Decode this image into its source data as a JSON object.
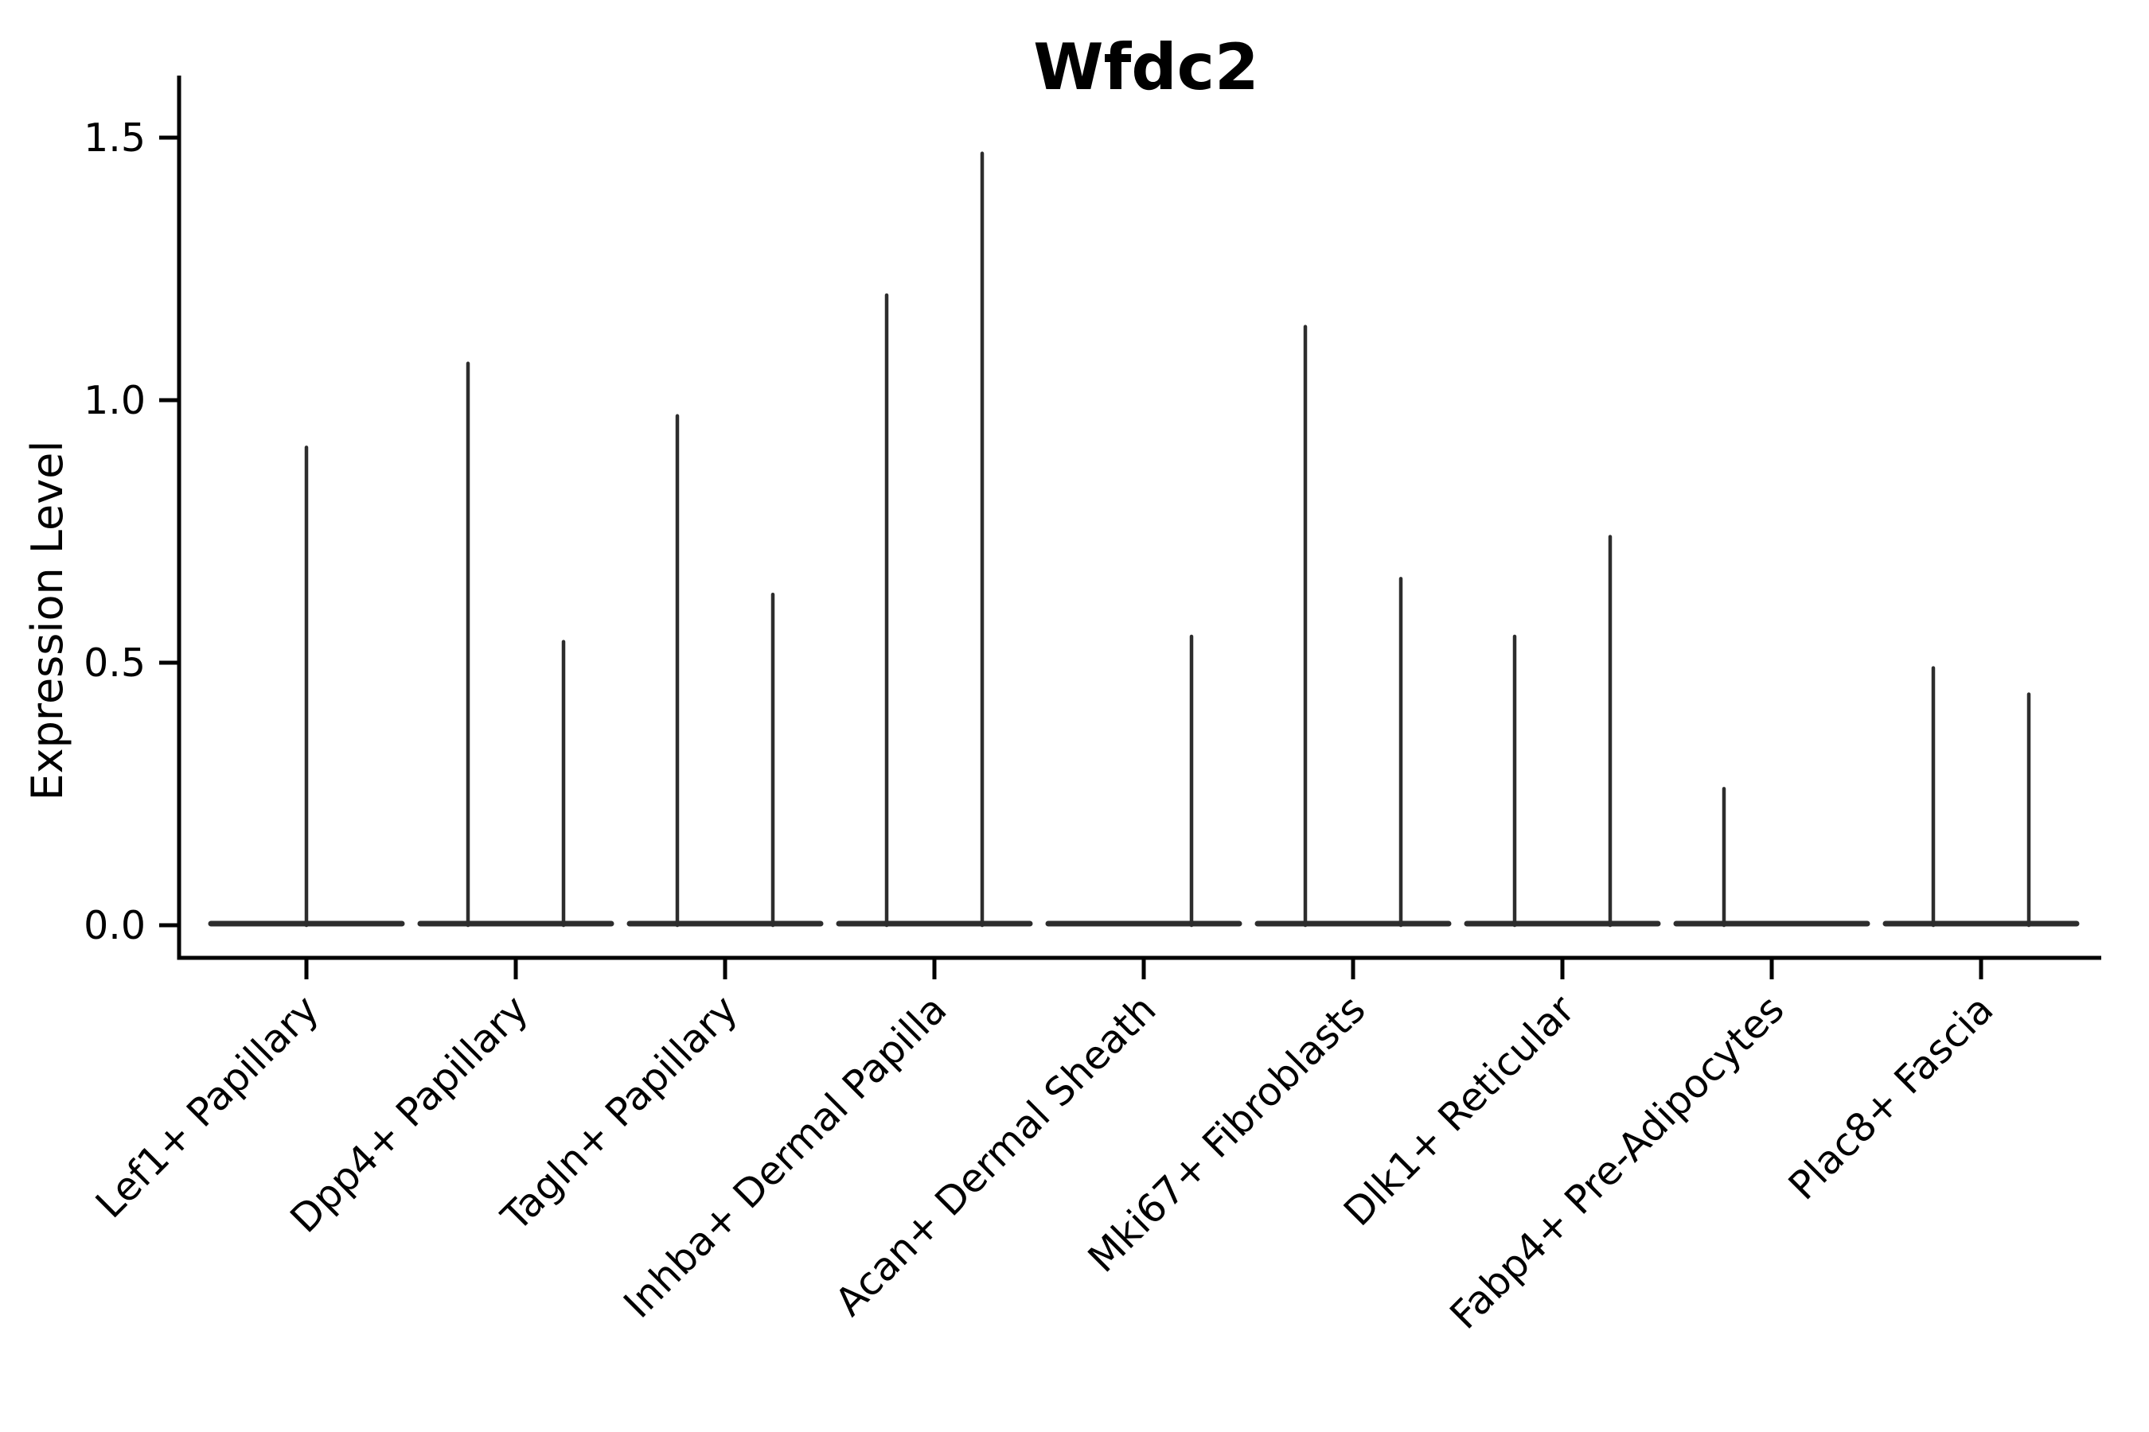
{
  "title": "Wfdc2",
  "ylabel": "Expression Level",
  "colors": {
    "violin_stroke": "#2d2d2d",
    "axis": "#000000",
    "text": "#000000",
    "background": "#ffffff"
  },
  "chart_data": {
    "type": "violin",
    "title": "Wfdc2",
    "xlabel": "",
    "ylabel": "Expression Level",
    "ylim": [
      0.0,
      1.5
    ],
    "yticks": [
      0.0,
      0.5,
      1.0,
      1.5
    ],
    "ytick_labels": [
      "0.0",
      "0.5",
      "1.0",
      "1.5"
    ],
    "grid": false,
    "legend_position": "none",
    "x_tick_rotation_deg": 45,
    "categories": [
      "Lef1+ Papillary",
      "Dpp4+ Papillary",
      "Tagln+ Papillary",
      "Inhba+ Dermal Papilla",
      "Acan+ Dermal Sheath",
      "Mki67+ Fibroblasts",
      "Dlk1+ Reticular",
      "Fabp4+ Pre-Adipocytes",
      "Plac8+ Fascia"
    ],
    "groups": [
      {
        "label": "Lef1+ Papillary",
        "baseline_value": 0.0,
        "violins": [
          {
            "position": "center",
            "tail_max": 0.91
          }
        ]
      },
      {
        "label": "Dpp4+ Papillary",
        "baseline_value": 0.0,
        "violins": [
          {
            "position": "left",
            "tail_max": 1.07
          },
          {
            "position": "right",
            "tail_max": 0.54
          }
        ]
      },
      {
        "label": "Tagln+ Papillary",
        "baseline_value": 0.0,
        "violins": [
          {
            "position": "left",
            "tail_max": 0.97
          },
          {
            "position": "right",
            "tail_max": 0.63
          }
        ]
      },
      {
        "label": "Inhba+ Dermal Papilla",
        "baseline_value": 0.0,
        "violins": [
          {
            "position": "left",
            "tail_max": 1.2
          },
          {
            "position": "right",
            "tail_max": 1.47
          }
        ]
      },
      {
        "label": "Acan+ Dermal Sheath",
        "baseline_value": 0.0,
        "violins": [
          {
            "position": "right",
            "tail_max": 0.55
          }
        ]
      },
      {
        "label": "Mki67+ Fibroblasts",
        "baseline_value": 0.0,
        "violins": [
          {
            "position": "left",
            "tail_max": 1.14
          },
          {
            "position": "right",
            "tail_max": 0.66
          }
        ]
      },
      {
        "label": "Dlk1+ Reticular",
        "baseline_value": 0.0,
        "violins": [
          {
            "position": "left",
            "tail_max": 0.55
          },
          {
            "position": "right",
            "tail_max": 0.74
          }
        ]
      },
      {
        "label": "Fabp4+ Pre-Adipocytes",
        "baseline_value": 0.0,
        "violins": [
          {
            "position": "left",
            "tail_max": 0.26
          }
        ]
      },
      {
        "label": "Plac8+ Fascia",
        "baseline_value": 0.0,
        "violins": [
          {
            "position": "left",
            "tail_max": 0.49
          },
          {
            "position": "right",
            "tail_max": 0.44
          }
        ]
      }
    ]
  }
}
